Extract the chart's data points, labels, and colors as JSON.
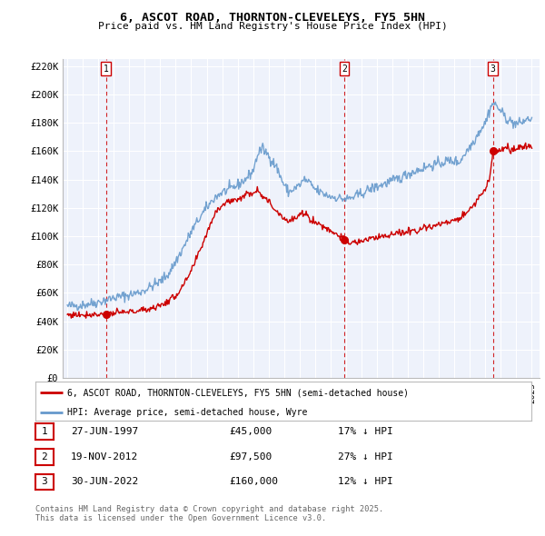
{
  "title": "6, ASCOT ROAD, THORNTON-CLEVELEYS, FY5 5HN",
  "subtitle": "Price paid vs. HM Land Registry's House Price Index (HPI)",
  "legend_line1": "6, ASCOT ROAD, THORNTON-CLEVELEYS, FY5 5HN (semi-detached house)",
  "legend_line2": "HPI: Average price, semi-detached house, Wyre",
  "red_color": "#cc0000",
  "blue_color": "#6699cc",
  "sale_years": [
    1997.49,
    2012.88,
    2022.49
  ],
  "sale_prices": [
    45000,
    97500,
    160000
  ],
  "sale_labels": [
    "1",
    "2",
    "3"
  ],
  "table_rows": [
    [
      "1",
      "27-JUN-1997",
      "£45,000",
      "17% ↓ HPI"
    ],
    [
      "2",
      "19-NOV-2012",
      "£97,500",
      "27% ↓ HPI"
    ],
    [
      "3",
      "30-JUN-2022",
      "£160,000",
      "12% ↓ HPI"
    ]
  ],
  "footnote": "Contains HM Land Registry data © Crown copyright and database right 2025.\nThis data is licensed under the Open Government Licence v3.0.",
  "ylim": [
    0,
    225000
  ],
  "yticks": [
    0,
    20000,
    40000,
    60000,
    80000,
    100000,
    120000,
    140000,
    160000,
    180000,
    200000,
    220000
  ],
  "ytick_labels": [
    "£0",
    "£20K",
    "£40K",
    "£60K",
    "£80K",
    "£100K",
    "£120K",
    "£140K",
    "£160K",
    "£180K",
    "£200K",
    "£220K"
  ],
  "xlim_start": 1994.7,
  "xlim_end": 2025.5,
  "background_color": "#eef2fb",
  "grid_color": "#ffffff"
}
